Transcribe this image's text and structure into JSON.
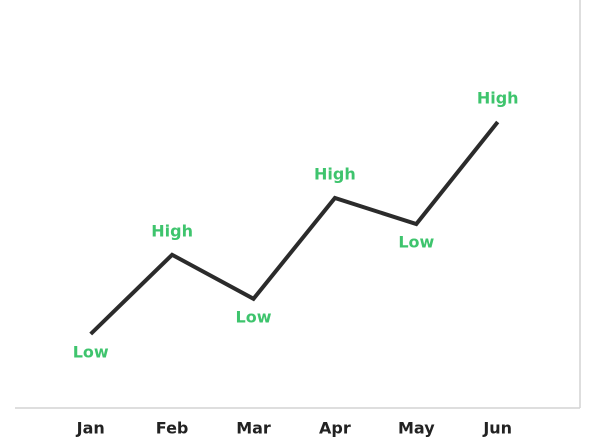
{
  "chart_data": {
    "type": "line",
    "categories": [
      "Jan",
      "Feb",
      "Mar",
      "Apr",
      "May",
      "Jun"
    ],
    "values": [
      18.5,
      38.3,
      27.3,
      52.5,
      46,
      71.5
    ],
    "value_labels": [
      "Low",
      "High",
      "Low",
      "High",
      "Low",
      "High"
    ],
    "color": "#2b2b2b",
    "label_color": "#3ec46d",
    "ylim": [
      0,
      100
    ]
  }
}
